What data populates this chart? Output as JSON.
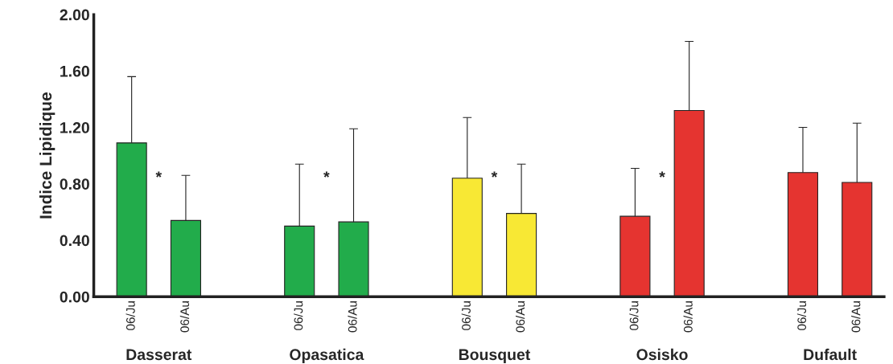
{
  "chart_data": {
    "type": "bar",
    "ylabel": "Indice Lipidique",
    "categories": [
      "06/Ju",
      "06/Au",
      "06/Ju",
      "06/Au",
      "06/Ju",
      "06/Au",
      "06/Ju",
      "06/Au",
      "06/Ju",
      "06/Au"
    ],
    "values": [
      1.09,
      0.54,
      0.5,
      0.53,
      0.84,
      0.59,
      0.57,
      1.32,
      0.88,
      0.81
    ],
    "colors": [
      "#22ac4b",
      "#22ac4b",
      "#22ac4b",
      "#22ac4b",
      "#f8e834",
      "#f8e834",
      "#e53430",
      "#e53430",
      "#e53430",
      "#e53430"
    ],
    "errors": [
      [
        1.09,
        1.56
      ],
      [
        0.54,
        0.86
      ],
      [
        0.5,
        0.94
      ],
      [
        0.53,
        1.19
      ],
      [
        0.84,
        1.27
      ],
      [
        0.59,
        0.94
      ],
      [
        0.57,
        0.91
      ],
      [
        1.32,
        1.81
      ],
      [
        0.88,
        1.2
      ],
      [
        0.81,
        1.23
      ]
    ],
    "ylim": [
      0,
      2.0
    ],
    "yticks": [
      {
        "value": 0,
        "label": "0.00"
      },
      {
        "value": 0.4,
        "label": "0.40"
      },
      {
        "value": 0.8,
        "label": "0.80"
      },
      {
        "value": 1.2,
        "label": "1.20"
      },
      {
        "value": 1.6,
        "label": "1.60"
      },
      {
        "value": 2.0,
        "label": "2.00"
      }
    ],
    "annotations": [
      "Dasserat",
      "Opasatica",
      "Bousquet",
      "Osisko",
      "Dufault",
      "*",
      "*",
      "*",
      "*"
    ],
    "grid": false,
    "legend": false
  }
}
